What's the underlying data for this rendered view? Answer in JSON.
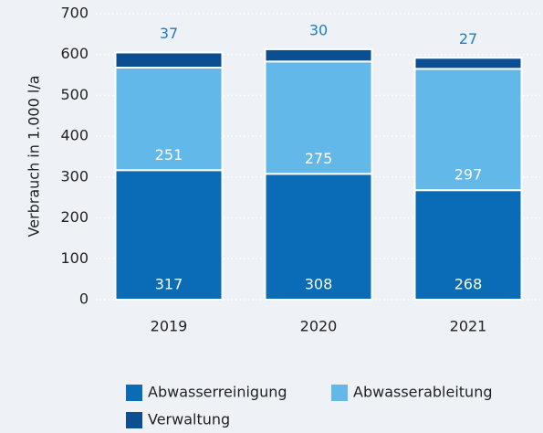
{
  "chart_data": {
    "type": "stacked_bar",
    "y_label": "Verbrauch in 1.000 l/a",
    "categories": [
      "2019",
      "2020",
      "2021"
    ],
    "series": [
      {
        "name": "Abwasserreinigung",
        "color": "#0a6cb6",
        "values": [
          317,
          308,
          268
        ]
      },
      {
        "name": "Abwasserableitung",
        "color": "#62b8e8",
        "values": [
          251,
          275,
          297
        ]
      },
      {
        "name": "Verwaltung",
        "color": "#0b4f92",
        "values": [
          37,
          30,
          27
        ]
      }
    ],
    "ylim": [
      0,
      700
    ],
    "yticks": [
      0,
      100,
      200,
      300,
      400,
      500,
      600,
      700
    ],
    "grid": true
  }
}
